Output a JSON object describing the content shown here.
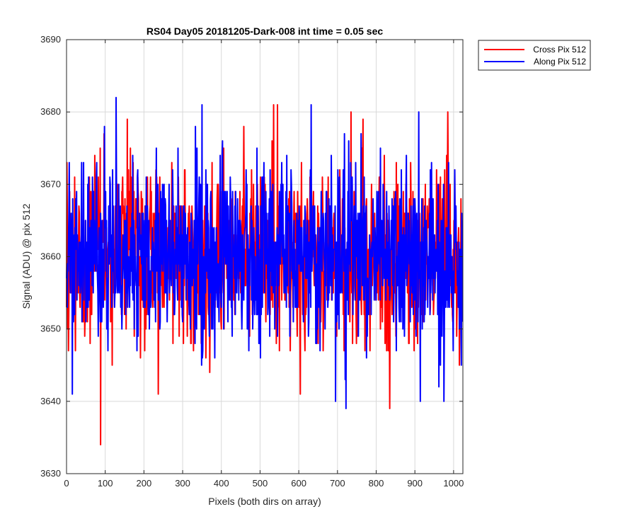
{
  "chart_data": {
    "type": "line",
    "title": "RS04 Day05 20181205-Dark-008 int time = 0.05 sec",
    "xlabel": "Pixels (both dirs on array)",
    "ylabel": "Signal (ADU) @ pix 512",
    "xlim": [
      0,
      1024
    ],
    "ylim": [
      3630,
      3690
    ],
    "xticks": [
      "0",
      "100",
      "200",
      "300",
      "400",
      "500",
      "600",
      "700",
      "800",
      "900",
      "1000"
    ],
    "yticks": [
      "3630",
      "3640",
      "3650",
      "3660",
      "3670",
      "3680",
      "3690"
    ],
    "grid": true,
    "legend_position": "outside-top-right",
    "series": [
      {
        "name": "Cross Pix 512",
        "color": "#ff0000",
        "summary": {
          "n_points": 1024,
          "mean": 3660,
          "min": 3634,
          "max": 3681,
          "min_at_x": 88,
          "max_at_x": 535
        },
        "key_points": [
          {
            "x": 1,
            "y": 3673
          },
          {
            "x": 88,
            "y": 3634
          },
          {
            "x": 97,
            "y": 3677
          },
          {
            "x": 535,
            "y": 3681
          },
          {
            "x": 545,
            "y": 3681
          },
          {
            "x": 735,
            "y": 3680
          },
          {
            "x": 835,
            "y": 3639
          },
          {
            "x": 985,
            "y": 3680
          }
        ]
      },
      {
        "name": "Along Pix 512",
        "color": "#0000ff",
        "summary": {
          "n_points": 1024,
          "mean": 3660,
          "min": 3639,
          "max": 3682,
          "min_at_x": 722,
          "max_at_x": 128
        },
        "key_points": [
          {
            "x": 15,
            "y": 3641
          },
          {
            "x": 128,
            "y": 3682
          },
          {
            "x": 350,
            "y": 3681
          },
          {
            "x": 722,
            "y": 3639
          },
          {
            "x": 910,
            "y": 3680
          },
          {
            "x": 975,
            "y": 3640
          },
          {
            "x": 1020,
            "y": 3645
          }
        ]
      }
    ]
  }
}
